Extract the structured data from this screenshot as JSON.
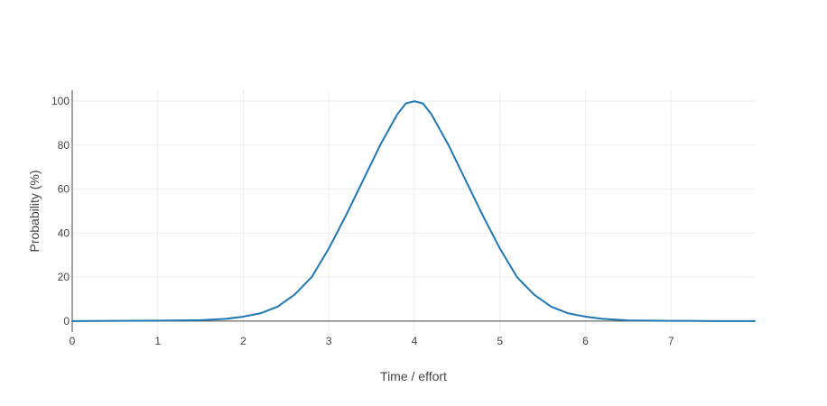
{
  "chart_data": {
    "type": "line",
    "title": "",
    "xlabel": "Time / effort",
    "ylabel": "Probability (%)",
    "xlim": [
      0,
      7.98
    ],
    "ylim": [
      -5,
      105
    ],
    "x_ticks": [
      0,
      1,
      2,
      3,
      4,
      5,
      6,
      7
    ],
    "y_ticks": [
      0,
      20,
      40,
      60,
      80,
      100
    ],
    "grid": true,
    "legend": "none",
    "series": [
      {
        "color": "#1f77b4",
        "x": [
          0,
          0.5,
          1,
          1.5,
          1.8,
          2,
          2.2,
          2.4,
          2.6,
          2.8,
          3,
          3.2,
          3.4,
          3.6,
          3.8,
          3.9,
          4,
          4.1,
          4.2,
          4.4,
          4.6,
          4.8,
          5,
          5.2,
          5.4,
          5.6,
          5.8,
          6,
          6.2,
          6.5,
          7,
          7.5,
          7.98
        ],
        "y": [
          0,
          0.1,
          0.2,
          0.4,
          1,
          2,
          3.5,
          6.5,
          12,
          20,
          33,
          48,
          64,
          80,
          94,
          99,
          100,
          99,
          94,
          80,
          64,
          48,
          33,
          20,
          12,
          6.5,
          3.5,
          2,
          1,
          0.3,
          0.1,
          0,
          0
        ]
      }
    ]
  }
}
